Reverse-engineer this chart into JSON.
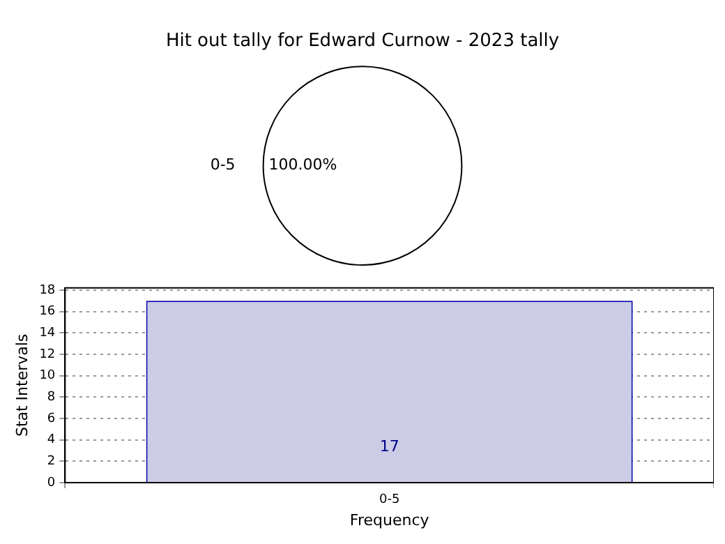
{
  "chart_data": [
    {
      "type": "pie",
      "title": "Hit out tally for Edward Curnow - 2023 tally",
      "categories": [
        "0-5"
      ],
      "values": [
        100
      ],
      "colors": [
        "#ffffff"
      ],
      "value_labels": [
        "100.00%"
      ]
    },
    {
      "type": "bar",
      "categories": [
        "0-5"
      ],
      "values": [
        17
      ],
      "color": "#cccce6",
      "xlabel": "Frequency",
      "ylabel": "Stat Intervals",
      "ylim": [
        0,
        18.2
      ],
      "yticks": [
        0,
        2,
        4,
        6,
        8,
        10,
        12,
        14,
        16,
        18
      ],
      "grid": true,
      "data_labels": true
    }
  ]
}
